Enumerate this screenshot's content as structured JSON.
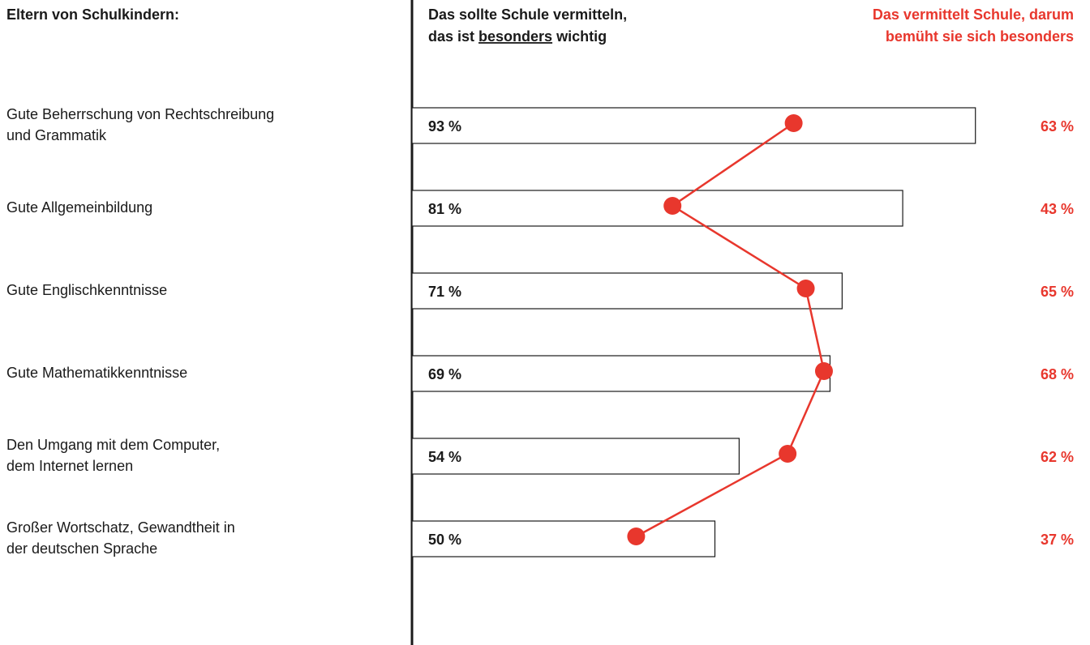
{
  "chart_data": {
    "type": "bar-dot",
    "title": "Eltern von Schulkindern:",
    "categories": [
      [
        "Gute Beherrschung von Rechtschreibung",
        "und Grammatik"
      ],
      [
        "Gute Allgemeinbildung"
      ],
      [
        "Gute Englischkenntnisse"
      ],
      [
        "Gute Mathematikkenntnisse"
      ],
      [
        "Den Umgang mit dem Computer,",
        "dem Internet lernen"
      ],
      [
        "Großer Wortschatz, Gewandtheit in",
        "der deutschen Sprache"
      ]
    ],
    "series": [
      {
        "name": [
          [
            "Das sollte Schule vermitteln,"
          ],
          [
            "das ist ",
            "besonders",
            " wichtig"
          ]
        ],
        "color": "#1a1a1a",
        "values": [
          93,
          81,
          71,
          69,
          54,
          50
        ],
        "value_labels": [
          "93 %",
          "81 %",
          "71 %",
          "69 %",
          "54 %",
          "50 %"
        ]
      },
      {
        "name": [
          [
            "Das vermittelt Schule, darum"
          ],
          [
            "bemüht sie sich besonders"
          ]
        ],
        "color": "#e8372d",
        "values": [
          63,
          43,
          65,
          68,
          62,
          37
        ],
        "value_labels": [
          "63 %",
          "43 %",
          "65 %",
          "68 %",
          "62 %",
          "37 %"
        ]
      }
    ],
    "xlim": [
      0,
      100
    ]
  }
}
